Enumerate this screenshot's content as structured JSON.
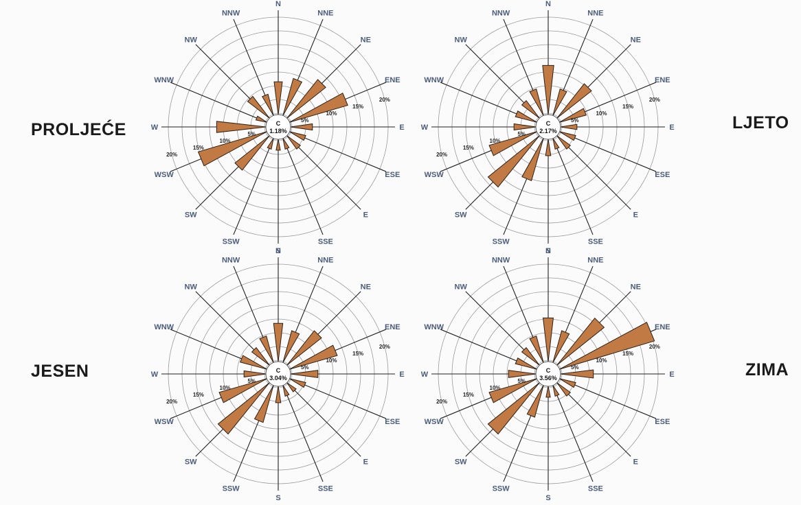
{
  "chart_data": [
    {
      "type": "radar",
      "title": "PROLJEĆE",
      "calm_label": "C",
      "calm": "1.18%",
      "directions": [
        "N",
        "NNE",
        "NE",
        "ENE",
        "E",
        "ESE",
        "E",
        "SSE",
        "S",
        "SSW",
        "SW",
        "WSW",
        "W",
        "WNW",
        "NW",
        "NNW"
      ],
      "values": [
        6,
        7,
        9,
        11,
        4,
        3,
        3,
        2,
        2,
        2,
        8,
        13,
        9,
        2,
        5,
        4
      ],
      "ring_labels": [
        "5%",
        "10%",
        "15%",
        "20%"
      ],
      "rlim": [
        0,
        20
      ]
    },
    {
      "type": "radar",
      "title": "LJETO",
      "calm_label": "C",
      "calm": "2.17%",
      "directions": [
        "N",
        "NNE",
        "NE",
        "ENE",
        "E",
        "ESE",
        "E",
        "SSE",
        "S",
        "SSW",
        "SW",
        "WSW",
        "W",
        "WNW",
        "NW",
        "NNW"
      ],
      "values": [
        9,
        5,
        8,
        5,
        3,
        3,
        3,
        2,
        3,
        8,
        12,
        9,
        4,
        4,
        4,
        5
      ],
      "ring_labels": [
        "5%",
        "10%",
        "15%",
        "20%"
      ],
      "rlim": [
        0,
        20
      ]
    },
    {
      "type": "radar",
      "title": "JESEN",
      "calm_label": "C",
      "calm": "3.04%",
      "directions": [
        "N",
        "NNE",
        "NE",
        "ENE",
        "E",
        "ESE",
        "E",
        "SSE",
        "S",
        "SSW",
        "SW",
        "WSW",
        "W",
        "WNW",
        "NW",
        "NNW"
      ],
      "values": [
        7,
        6,
        8,
        9,
        5,
        3,
        2,
        2,
        3,
        7,
        12,
        9,
        4,
        5,
        4,
        5
      ],
      "ring_labels": [
        "5%",
        "10%",
        "15%",
        "20%"
      ],
      "rlim": [
        0,
        20
      ]
    },
    {
      "type": "radar",
      "title": "ZIMA",
      "calm_label": "C",
      "calm": "3.56%",
      "directions": [
        "N",
        "NNE",
        "NE",
        "ENE",
        "E",
        "ESE",
        "E",
        "SSE",
        "S",
        "SSW",
        "SW",
        "WSW",
        "W",
        "WNW",
        "NW",
        "NNW"
      ],
      "values": [
        8,
        6,
        11,
        18,
        6,
        3,
        3,
        2,
        2,
        6,
        12,
        9,
        5,
        4,
        4,
        5
      ],
      "ring_labels": [
        "5%",
        "10%",
        "15%",
        "20%"
      ],
      "rlim": [
        0,
        20
      ]
    }
  ]
}
